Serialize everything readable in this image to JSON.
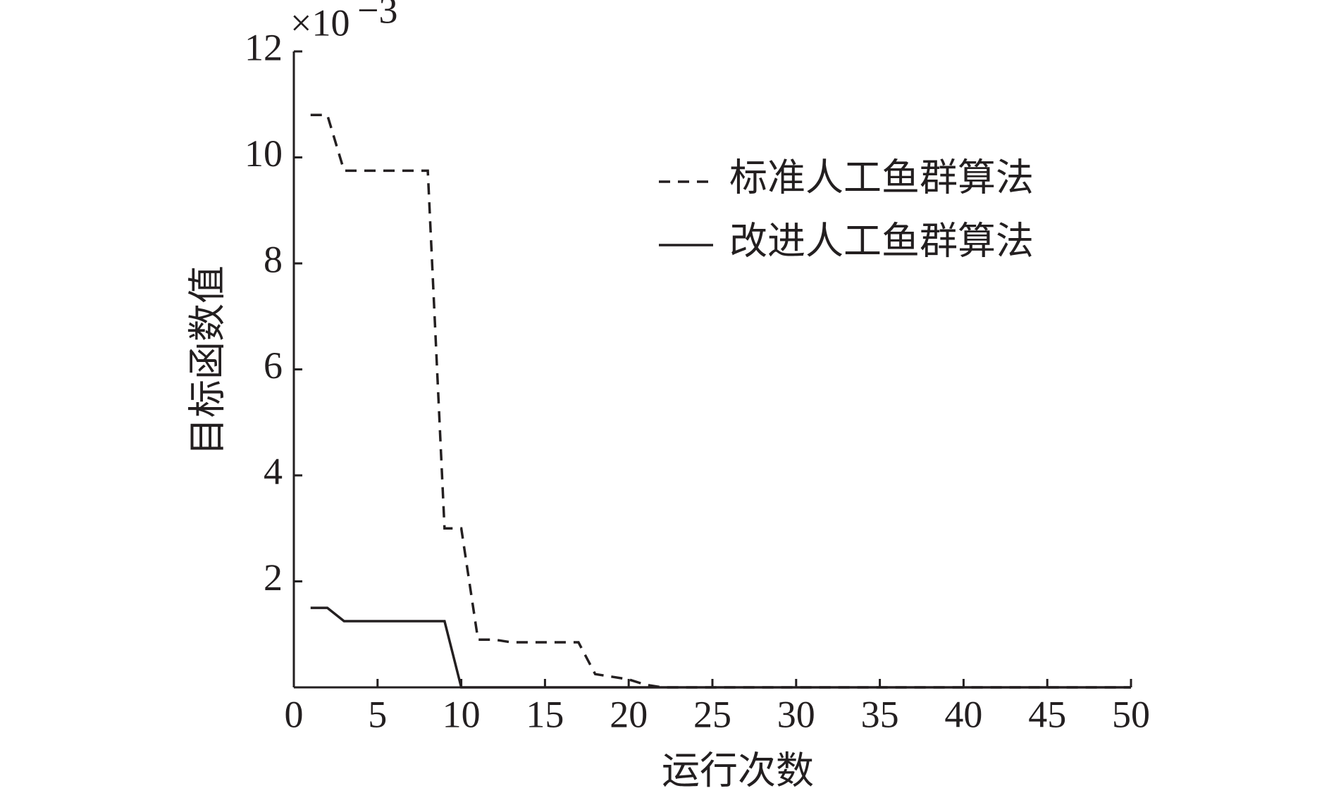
{
  "chart_data": {
    "type": "line",
    "x_label": "运行次数",
    "y_label": "目标函数值",
    "scale_base": "×10",
    "scale_exponent": "−3",
    "x": [
      1,
      2,
      3,
      4,
      5,
      6,
      7,
      8,
      9,
      10,
      11,
      12,
      13,
      14,
      15,
      16,
      17,
      18,
      19,
      20,
      21,
      22,
      23,
      24,
      25,
      26,
      27,
      28,
      29,
      30,
      31,
      32,
      33,
      34,
      35,
      36,
      37,
      38,
      39,
      40,
      41,
      42,
      43,
      44,
      45,
      46,
      47,
      48,
      49,
      50
    ],
    "series": [
      {
        "name": "标准人工鱼群算法",
        "color": "#231f20",
        "dash": true,
        "values": [
          10.8,
          10.8,
          9.75,
          9.75,
          9.75,
          9.75,
          9.75,
          9.75,
          3.0,
          3.0,
          0.9,
          0.9,
          0.85,
          0.85,
          0.85,
          0.85,
          0.85,
          0.25,
          0.2,
          0.15,
          0.05,
          0,
          0,
          0,
          0,
          0,
          0,
          0,
          0,
          0,
          0,
          0,
          0,
          0,
          0,
          0,
          0,
          0,
          0,
          0,
          0,
          0,
          0,
          0,
          0,
          0,
          0,
          0,
          0,
          0
        ]
      },
      {
        "name": "改进人工鱼群算法",
        "color": "#231f20",
        "dash": false,
        "values": [
          1.5,
          1.5,
          1.25,
          1.25,
          1.25,
          1.25,
          1.25,
          1.25,
          1.25,
          0,
          0,
          0,
          0,
          0,
          0,
          0,
          0,
          0,
          0,
          0,
          0,
          0,
          0,
          0,
          0,
          0,
          0,
          0,
          0,
          0,
          0,
          0,
          0,
          0,
          0,
          0,
          0,
          0,
          0,
          0,
          0,
          0,
          0,
          0,
          0,
          0,
          0,
          0,
          0,
          0
        ]
      }
    ],
    "xlim": [
      0,
      50
    ],
    "xticks": [
      0,
      5,
      10,
      15,
      20,
      25,
      30,
      35,
      40,
      45,
      50
    ],
    "ylim": [
      0,
      12
    ],
    "yticks": [
      2,
      4,
      6,
      8,
      10,
      12
    ]
  }
}
